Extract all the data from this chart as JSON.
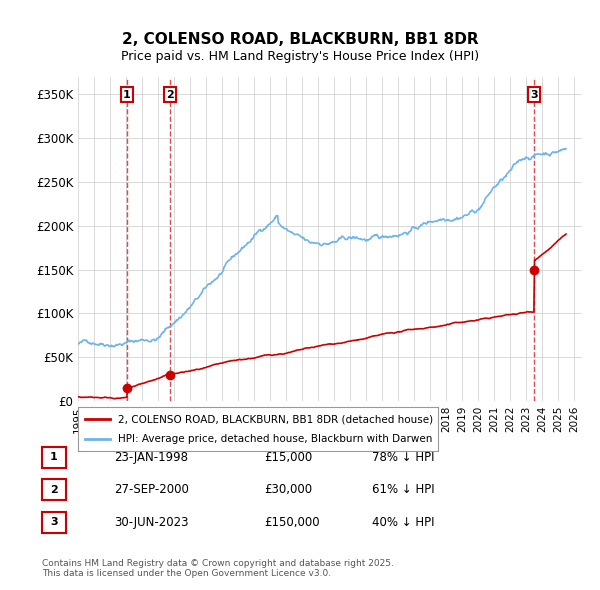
{
  "title": "2, COLENSO ROAD, BLACKBURN, BB1 8DR",
  "subtitle": "Price paid vs. HM Land Registry's House Price Index (HPI)",
  "xlabel": "",
  "ylabel": "",
  "ylim": [
    0,
    370000
  ],
  "xlim_start": 1995.0,
  "xlim_end": 2026.5,
  "yticks": [
    0,
    50000,
    100000,
    150000,
    200000,
    250000,
    300000,
    350000
  ],
  "ytick_labels": [
    "£0",
    "£50K",
    "£100K",
    "£150K",
    "£200K",
    "£250K",
    "£300K",
    "£350K"
  ],
  "xtick_years": [
    1995,
    1996,
    1997,
    1998,
    1999,
    2000,
    2001,
    2002,
    2003,
    2004,
    2005,
    2006,
    2007,
    2008,
    2009,
    2010,
    2011,
    2012,
    2013,
    2014,
    2015,
    2016,
    2017,
    2018,
    2019,
    2020,
    2021,
    2022,
    2023,
    2024,
    2025,
    2026
  ],
  "hpi_color": "#6eb4e8",
  "price_color": "#cc0000",
  "dot_color": "#cc0000",
  "vline_color": "#cc0000",
  "legend_label_price": "2, COLENSO ROAD, BLACKBURN, BB1 8DR (detached house)",
  "legend_label_hpi": "HPI: Average price, detached house, Blackburn with Darwen",
  "transactions": [
    {
      "label": "1",
      "date": "23-JAN-1998",
      "year": 1998.06,
      "price": 15000,
      "hpi_pct": "78% ↓ HPI"
    },
    {
      "label": "2",
      "date": "27-SEP-2000",
      "year": 2000.75,
      "price": 30000,
      "hpi_pct": "61% ↓ HPI"
    },
    {
      "label": "3",
      "date": "30-JUN-2023",
      "year": 2023.5,
      "price": 150000,
      "hpi_pct": "40% ↓ HPI"
    }
  ],
  "footer": "Contains HM Land Registry data © Crown copyright and database right 2025.\nThis data is licensed under the Open Government Licence v3.0.",
  "background_color": "#ffffff",
  "plot_bg_color": "#ffffff",
  "grid_color": "#cccccc",
  "label_box_color": "#cc0000"
}
